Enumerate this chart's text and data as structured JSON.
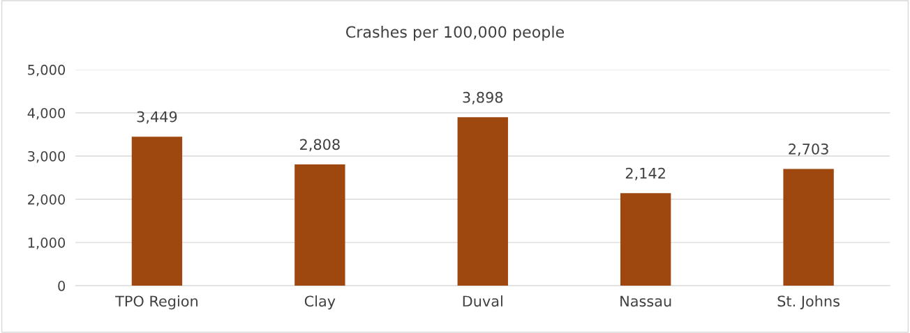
{
  "chart_data": {
    "type": "bar",
    "title": "Crashes per 100,000 people",
    "categories": [
      "TPO Region",
      "Clay",
      "Duval",
      "Nassau",
      "St. Johns"
    ],
    "values": [
      3449,
      2808,
      3898,
      2142,
      2703
    ],
    "value_labels": [
      "3,449",
      "2,808",
      "3,898",
      "2,142",
      "2,703"
    ],
    "color": "#9e470e",
    "ylim": [
      0,
      5000
    ],
    "yticks": [
      0,
      {
        "value": 1000,
        "label": "1,000"
      },
      {
        "value": 2000,
        "label": "2,000"
      },
      {
        "value": 3000,
        "label": "3,000"
      },
      {
        "value": 4000,
        "label": "4,000"
      },
      {
        "value": 5000,
        "label": "5,000"
      }
    ],
    "grid": "y",
    "legend": false
  }
}
